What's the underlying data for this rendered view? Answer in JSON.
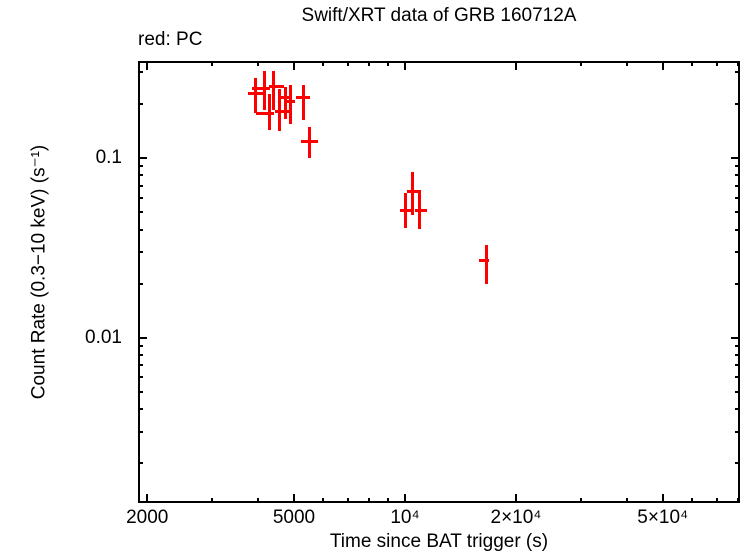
{
  "title": "Swift/XRT data of GRB 160712A",
  "mode_label": "red: PC",
  "colors": {
    "pc_mode": "#ff0000",
    "axis": "#000000",
    "background": "#ffffff"
  },
  "chart_data": {
    "type": "scatter",
    "subtype": "errorbar-light-curve",
    "title": "Swift/XRT data of GRB 160712A",
    "xlabel": "Time since BAT trigger (s)",
    "ylabel": "Count Rate (0.3−10 keV) (s⁻¹)",
    "xscale": "log",
    "yscale": "log",
    "xlim": [
      1888,
      81000
    ],
    "ylim": [
      0.0012,
      0.347
    ],
    "grid": false,
    "legend_position": "none",
    "x_major_ticks": [
      {
        "value": 2000,
        "label": "2000"
      },
      {
        "value": 5000,
        "label": "5000"
      },
      {
        "value": 10000,
        "label": "10⁴"
      },
      {
        "value": 20000,
        "label": "2×10⁴"
      },
      {
        "value": 50000,
        "label": "5×10⁴"
      }
    ],
    "x_minor_ticks": [
      3000,
      4000,
      6000,
      7000,
      8000,
      9000,
      30000,
      40000,
      60000,
      70000,
      80000
    ],
    "y_major_ticks": [
      {
        "value": 0.1,
        "label": "0.1"
      },
      {
        "value": 0.01,
        "label": "0.01"
      }
    ],
    "y_minor_ticks": [
      0.3,
      0.2,
      0.09,
      0.08,
      0.07,
      0.06,
      0.05,
      0.04,
      0.03,
      0.02,
      0.009,
      0.008,
      0.007,
      0.006,
      0.005,
      0.004,
      0.003,
      0.002
    ],
    "series": [
      {
        "name": "PC",
        "color": "#ff0000",
        "marker": "cross-with-error-bars",
        "points": [
          {
            "t": 3940,
            "t_lo": 3750,
            "t_hi": 4170,
            "rate": 0.228,
            "rate_lo": 0.179,
            "rate_hi": 0.28
          },
          {
            "t": 4150,
            "t_lo": 3850,
            "t_hi": 4300,
            "rate": 0.245,
            "rate_lo": 0.186,
            "rate_hi": 0.307
          },
          {
            "t": 4280,
            "t_lo": 3950,
            "t_hi": 4410,
            "rate": 0.176,
            "rate_lo": 0.143,
            "rate_hi": 0.228
          },
          {
            "t": 4410,
            "t_lo": 4280,
            "t_hi": 4690,
            "rate": 0.251,
            "rate_lo": 0.186,
            "rate_hi": 0.307
          },
          {
            "t": 4580,
            "t_lo": 4440,
            "t_hi": 4850,
            "rate": 0.182,
            "rate_lo": 0.142,
            "rate_hi": 0.243
          },
          {
            "t": 4740,
            "t_lo": 4610,
            "t_hi": 4910,
            "rate": 0.218,
            "rate_lo": 0.165,
            "rate_hi": 0.249
          },
          {
            "t": 4890,
            "t_lo": 4760,
            "t_hi": 5040,
            "rate": 0.206,
            "rate_lo": 0.155,
            "rate_hi": 0.256
          },
          {
            "t": 5290,
            "t_lo": 5050,
            "t_hi": 5530,
            "rate": 0.218,
            "rate_lo": 0.163,
            "rate_hi": 0.256
          },
          {
            "t": 5510,
            "t_lo": 5210,
            "t_hi": 5800,
            "rate": 0.123,
            "rate_lo": 0.1,
            "rate_hi": 0.149
          },
          {
            "t": 10060,
            "t_lo": 9690,
            "t_hi": 10450,
            "rate": 0.051,
            "rate_lo": 0.041,
            "rate_hi": 0.064
          },
          {
            "t": 10480,
            "t_lo": 10130,
            "t_hi": 10920,
            "rate": 0.065,
            "rate_lo": 0.048,
            "rate_hi": 0.084
          },
          {
            "t": 10980,
            "t_lo": 10650,
            "t_hi": 11470,
            "rate": 0.051,
            "rate_lo": 0.04,
            "rate_hi": 0.066
          },
          {
            "t": 16640,
            "t_lo": 15900,
            "t_hi": 16950,
            "rate": 0.027,
            "rate_lo": 0.02,
            "rate_hi": 0.033
          }
        ]
      }
    ]
  }
}
